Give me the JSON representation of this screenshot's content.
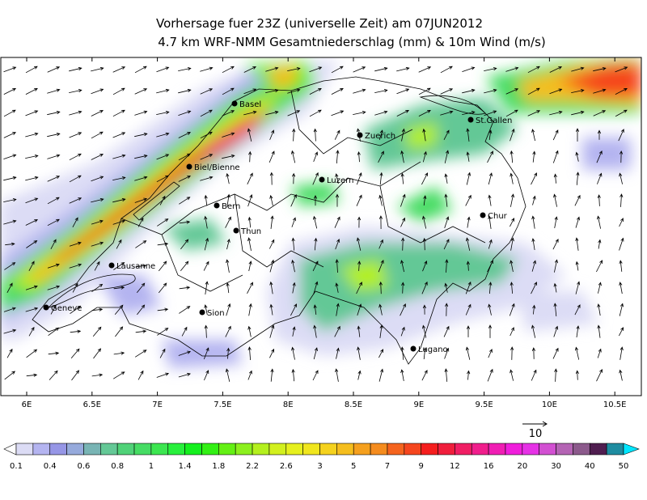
{
  "title": {
    "line1": "Vorhersage fuer 23Z (universelle Zeit) am 07JUN2012",
    "line2": "4.7 km WRF-NMM Gesamtniederschlag (mm) & 10m Wind (m/s)"
  },
  "map": {
    "cities": [
      "Basel",
      "Zuerich",
      "St.Gallen",
      "Biel/Bienne",
      "Luzern",
      "Bern",
      "Chur",
      "Thun",
      "Lausanne",
      "Geneve",
      "Sion",
      "Lugano"
    ],
    "x_axis_labels": [
      "6E",
      "6.5E",
      "7E",
      "7.5E",
      "8E",
      "8.5E",
      "9E",
      "9.5E",
      "10E",
      "10.5E"
    ]
  },
  "wind_scale": {
    "label": "10"
  },
  "colorbar": {
    "labels": [
      "0.1",
      "0.4",
      "0.6",
      "0.8",
      "1",
      "1.4",
      "1.8",
      "2.2",
      "2.6",
      "3",
      "5",
      "7",
      "9",
      "12",
      "16",
      "20",
      "30",
      "40",
      "50"
    ],
    "colors": [
      "#dcdcf5",
      "#b4b4f0",
      "#9696e6",
      "#96aadc",
      "#78b4b4",
      "#64c896",
      "#50d278",
      "#46dc64",
      "#3ce650",
      "#28f03c",
      "#14f01e",
      "#32f014",
      "#64f014",
      "#8cf01e",
      "#b4f01e",
      "#d2f01e",
      "#e6f01e",
      "#f0e61e",
      "#f5d21e",
      "#f5be1e",
      "#f5a01e",
      "#f58c1e",
      "#f5641e",
      "#f5461e",
      "#f51e1e",
      "#f01e3c",
      "#f01e64",
      "#f01e8c",
      "#f01eb4",
      "#f01edc",
      "#e632e6",
      "#d250d2",
      "#b464b4",
      "#8c5a8c",
      "#501e50",
      "#1e8ca0"
    ],
    "end_colors": [
      "#ffffff",
      "#00e6ff"
    ]
  }
}
